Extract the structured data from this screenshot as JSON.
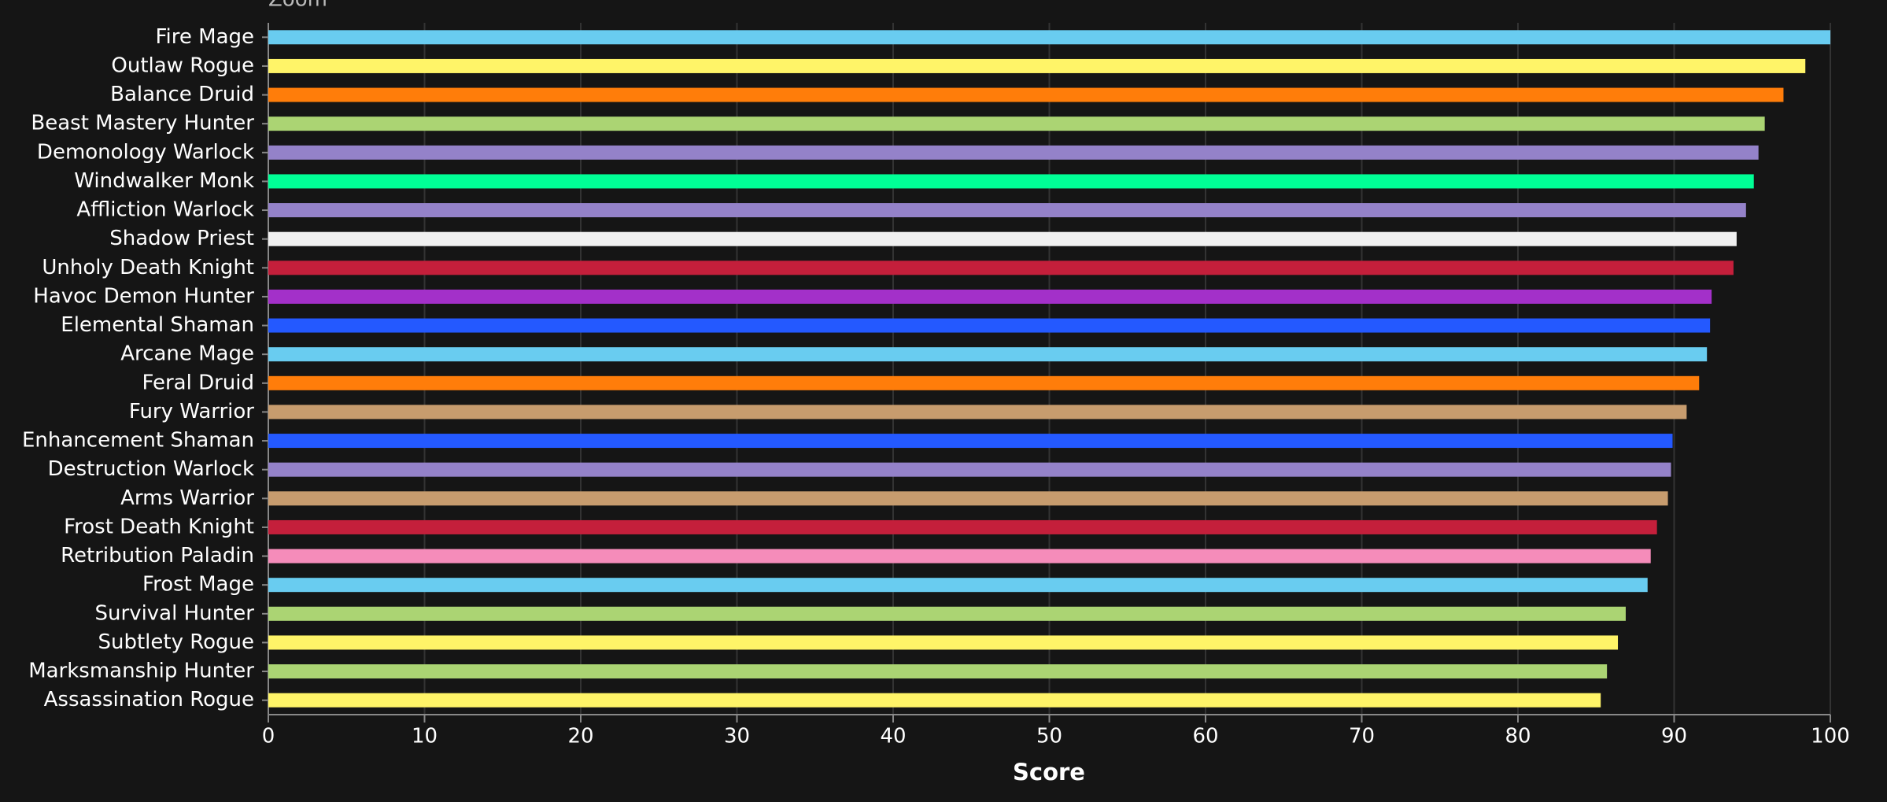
{
  "zoom_label": "Zoom",
  "chart_data": {
    "type": "bar",
    "orientation": "horizontal",
    "x_label": "Score",
    "categories": [
      "Fire Mage",
      "Outlaw Rogue",
      "Balance Druid",
      "Beast Mastery Hunter",
      "Demonology Warlock",
      "Windwalker Monk",
      "Affliction Warlock",
      "Shadow Priest",
      "Unholy Death Knight",
      "Havoc Demon Hunter",
      "Elemental Shaman",
      "Arcane Mage",
      "Feral Druid",
      "Fury Warrior",
      "Enhancement Shaman",
      "Destruction Warlock",
      "Arms Warrior",
      "Frost Death Knight",
      "Retribution Paladin",
      "Frost Mage",
      "Survival Hunter",
      "Subtlety Rogue",
      "Marksmanship Hunter",
      "Assassination Rogue"
    ],
    "values": [
      100,
      98.4,
      97.0,
      95.8,
      95.4,
      95.1,
      94.6,
      94.0,
      93.8,
      92.4,
      92.3,
      92.1,
      91.6,
      90.8,
      89.9,
      89.8,
      89.6,
      88.9,
      88.5,
      88.3,
      86.9,
      86.4,
      85.7,
      85.3
    ],
    "colors": [
      "#69ccf0",
      "#fff468",
      "#ff7d0a",
      "#abd473",
      "#9482c9",
      "#00ff96",
      "#9482c9",
      "#f0f0f0",
      "#c41f3b",
      "#a330c9",
      "#2459ff",
      "#69ccf0",
      "#ff7d0a",
      "#c79c6e",
      "#2459ff",
      "#9482c9",
      "#c79c6e",
      "#c41f3b",
      "#f58cba",
      "#69ccf0",
      "#abd473",
      "#fff468",
      "#abd473",
      "#fff468"
    ],
    "xlim": [
      0,
      100
    ],
    "xticks": [
      0,
      10,
      20,
      30,
      40,
      50,
      60,
      70,
      80,
      90,
      100
    ],
    "grid": true
  }
}
